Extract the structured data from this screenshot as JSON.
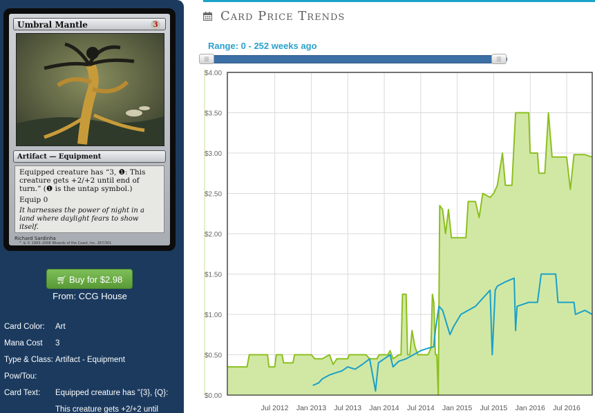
{
  "card": {
    "name": "Umbral Mantle",
    "cost": "3",
    "type_line": "Artifact — Equipment",
    "rules_1": "Equipped creature has “3, ❶: This creature gets +2/+2 until end of turn.” (❶ is the untap symbol.)",
    "rules_2": "Equip 0",
    "flavor": "It harnesses the power of night in a land where daylight fears to show itself.",
    "artist": "Richard Sardinha",
    "copyright": "™ & © 1993–2008 Wizards of the Coast, Inc. 267/301"
  },
  "buy": {
    "label": "Buy for $2.98",
    "from": "From: CCG House"
  },
  "details": [
    {
      "key": "Card Color:",
      "value": "Art"
    },
    {
      "key": "Mana Cost",
      "value": "3"
    },
    {
      "key": "Type & Class:",
      "value": "Artifact - Equipment"
    },
    {
      "key": "Pow/Tou:",
      "value": ""
    },
    {
      "key": "Card Text:",
      "value": "Equipped creature has \"{3}, {Q}:",
      "value_2": "This creature gets +2/+2 until"
    }
  ],
  "header": {
    "title": "Card Price Trends",
    "range_label": "Range: 0 - 252 weeks ago",
    "icon": "calendar-icon"
  },
  "colors": {
    "green": "#8cbf1e",
    "green_fill": "#d1e8a5",
    "blue": "#1aa0c8",
    "accent": "#1aa3c8",
    "sidebar": "#1b3a5e"
  },
  "chart_data": {
    "type": "line",
    "title": "",
    "xlabel": "",
    "ylabel": "",
    "ylim": [
      0,
      4
    ],
    "xlim": [
      2011.85,
      2016.85
    ],
    "yticks": [
      "$0.00",
      "$0.50",
      "$1.00",
      "$1.50",
      "$2.00",
      "$2.50",
      "$3.00",
      "$3.50",
      "$4.00"
    ],
    "xticks": [
      {
        "label": "Jul 2012",
        "x": 2012.5
      },
      {
        "label": "Jan 2013",
        "x": 2013.0
      },
      {
        "label": "Jul 2013",
        "x": 2013.5
      },
      {
        "label": "Jan 2014",
        "x": 2014.0
      },
      {
        "label": "Jul 2014",
        "x": 2014.5
      },
      {
        "label": "Jan 2015",
        "x": 2015.0
      },
      {
        "label": "Jul 2015",
        "x": 2015.5
      },
      {
        "label": "Jan 2016",
        "x": 2016.0
      },
      {
        "label": "Jul 2016",
        "x": 2016.5
      }
    ],
    "grid": true,
    "series": [
      {
        "color": "green",
        "filled": true,
        "points": [
          [
            2011.85,
            0.35
          ],
          [
            2012.12,
            0.35
          ],
          [
            2012.15,
            0.5
          ],
          [
            2012.4,
            0.5
          ],
          [
            2012.42,
            0.35
          ],
          [
            2012.5,
            0.35
          ],
          [
            2012.52,
            0.5
          ],
          [
            2012.6,
            0.5
          ],
          [
            2012.62,
            0.4
          ],
          [
            2012.75,
            0.4
          ],
          [
            2012.77,
            0.5
          ],
          [
            2013.0,
            0.5
          ],
          [
            2013.05,
            0.45
          ],
          [
            2013.15,
            0.45
          ],
          [
            2013.25,
            0.5
          ],
          [
            2013.3,
            0.38
          ],
          [
            2013.35,
            0.45
          ],
          [
            2013.5,
            0.45
          ],
          [
            2013.52,
            0.5
          ],
          [
            2013.75,
            0.5
          ],
          [
            2013.8,
            0.45
          ],
          [
            2013.9,
            0.45
          ],
          [
            2013.93,
            0.5
          ],
          [
            2014.05,
            0.5
          ],
          [
            2014.08,
            0.55
          ],
          [
            2014.12,
            0.45
          ],
          [
            2014.2,
            0.5
          ],
          [
            2014.23,
            0.5
          ],
          [
            2014.25,
            1.25
          ],
          [
            2014.3,
            1.25
          ],
          [
            2014.32,
            0.5
          ],
          [
            2014.35,
            0.5
          ],
          [
            2014.38,
            0.8
          ],
          [
            2014.42,
            0.6
          ],
          [
            2014.46,
            0.5
          ],
          [
            2014.6,
            0.5
          ],
          [
            2014.64,
            0.58
          ],
          [
            2014.66,
            1.25
          ],
          [
            2014.68,
            1.15
          ],
          [
            2014.7,
            0.5
          ],
          [
            2014.72,
            0.5
          ],
          [
            2014.74,
            0.0
          ],
          [
            2014.76,
            2.35
          ],
          [
            2014.8,
            2.3
          ],
          [
            2014.84,
            2.0
          ],
          [
            2014.88,
            2.3
          ],
          [
            2014.92,
            1.95
          ],
          [
            2015.12,
            1.95
          ],
          [
            2015.15,
            2.4
          ],
          [
            2015.25,
            2.4
          ],
          [
            2015.3,
            2.2
          ],
          [
            2015.35,
            2.5
          ],
          [
            2015.45,
            2.45
          ],
          [
            2015.5,
            2.5
          ],
          [
            2015.55,
            2.6
          ],
          [
            2015.62,
            3.0
          ],
          [
            2015.66,
            2.6
          ],
          [
            2015.75,
            2.6
          ],
          [
            2015.8,
            3.5
          ],
          [
            2015.98,
            3.5
          ],
          [
            2016.0,
            3.0
          ],
          [
            2016.1,
            3.0
          ],
          [
            2016.12,
            2.75
          ],
          [
            2016.2,
            2.75
          ],
          [
            2016.25,
            3.5
          ],
          [
            2016.3,
            2.95
          ],
          [
            2016.5,
            2.95
          ],
          [
            2016.55,
            2.55
          ],
          [
            2016.6,
            2.98
          ],
          [
            2016.75,
            2.98
          ],
          [
            2016.85,
            2.95
          ]
        ]
      },
      {
        "color": "blue",
        "filled": false,
        "points": [
          [
            2013.02,
            0.12
          ],
          [
            2013.1,
            0.15
          ],
          [
            2013.15,
            0.2
          ],
          [
            2013.25,
            0.25
          ],
          [
            2013.35,
            0.28
          ],
          [
            2013.42,
            0.3
          ],
          [
            2013.5,
            0.35
          ],
          [
            2013.6,
            0.32
          ],
          [
            2013.7,
            0.38
          ],
          [
            2013.8,
            0.45
          ],
          [
            2013.88,
            0.05
          ],
          [
            2013.92,
            0.4
          ],
          [
            2014.0,
            0.45
          ],
          [
            2014.08,
            0.5
          ],
          [
            2014.12,
            0.35
          ],
          [
            2014.2,
            0.42
          ],
          [
            2014.3,
            0.45
          ],
          [
            2014.4,
            0.5
          ],
          [
            2014.5,
            0.55
          ],
          [
            2014.6,
            0.58
          ],
          [
            2014.68,
            0.6
          ],
          [
            2014.7,
            0.8
          ],
          [
            2014.75,
            1.1
          ],
          [
            2014.8,
            1.05
          ],
          [
            2014.85,
            0.9
          ],
          [
            2014.9,
            0.75
          ],
          [
            2014.95,
            0.85
          ],
          [
            2015.05,
            1.0
          ],
          [
            2015.15,
            1.05
          ],
          [
            2015.25,
            1.1
          ],
          [
            2015.35,
            1.2
          ],
          [
            2015.45,
            1.3
          ],
          [
            2015.48,
            0.5
          ],
          [
            2015.52,
            1.3
          ],
          [
            2015.55,
            1.35
          ],
          [
            2015.65,
            1.4
          ],
          [
            2015.78,
            1.45
          ],
          [
            2015.8,
            0.8
          ],
          [
            2015.82,
            1.1
          ],
          [
            2015.98,
            1.15
          ],
          [
            2016.1,
            1.15
          ],
          [
            2016.15,
            1.5
          ],
          [
            2016.35,
            1.5
          ],
          [
            2016.38,
            1.15
          ],
          [
            2016.6,
            1.15
          ],
          [
            2016.62,
            1.0
          ],
          [
            2016.75,
            1.05
          ],
          [
            2016.85,
            1.0
          ]
        ]
      }
    ]
  }
}
